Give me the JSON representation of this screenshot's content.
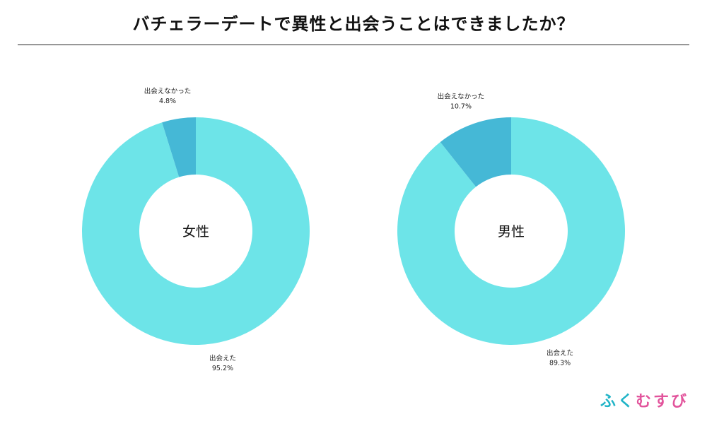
{
  "title": "バチェラーデートで異性と出会うことはできましたか？",
  "logo": {
    "chars": [
      "ふ",
      "く",
      "む",
      "す",
      "び"
    ],
    "colors": [
      "#21b4c7",
      "#21b4c7",
      "#e2549c",
      "#e2549c",
      "#e2549c"
    ]
  },
  "colors": {
    "met": "#6de4e8",
    "not_met": "#45b8d6",
    "center": "#ffffff"
  },
  "chart_data": [
    {
      "type": "pie",
      "center_label": "女性",
      "slices": [
        {
          "label": "出会えた",
          "value": 95.2,
          "value_text": "95.2%",
          "color": "#6de4e8"
        },
        {
          "label": "出会えなかった",
          "value": 4.8,
          "value_text": "4.8%",
          "color": "#45b8d6"
        }
      ]
    },
    {
      "type": "pie",
      "center_label": "男性",
      "slices": [
        {
          "label": "出会えた",
          "value": 89.3,
          "value_text": "89.3%",
          "color": "#6de4e8"
        },
        {
          "label": "出会えなかった",
          "value": 10.7,
          "value_text": "10.7%",
          "color": "#45b8d6"
        }
      ]
    }
  ]
}
